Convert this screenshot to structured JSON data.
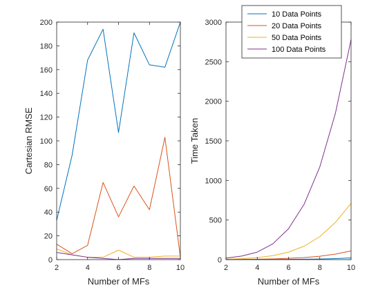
{
  "chart_data": [
    {
      "type": "line",
      "xlabel": "Number of MFs",
      "ylabel": "Cartesian RMSE",
      "xlim": [
        2,
        10
      ],
      "ylim": [
        0,
        200
      ],
      "xticks": [
        2,
        4,
        6,
        8,
        10
      ],
      "yticks": [
        0,
        20,
        40,
        60,
        80,
        100,
        120,
        140,
        160,
        180,
        200
      ],
      "x": [
        2,
        3,
        4,
        5,
        6,
        7,
        8,
        9,
        10
      ],
      "series": [
        {
          "color": "#0072BD",
          "values": [
            33,
            88,
            168,
            194,
            107,
            191,
            164,
            162,
            200
          ]
        },
        {
          "color": "#D95319",
          "values": [
            13,
            5,
            12,
            65,
            36,
            62,
            42,
            103,
            2
          ]
        },
        {
          "color": "#EDB120",
          "values": [
            9,
            4,
            2,
            2,
            8,
            2,
            2,
            3,
            3
          ]
        },
        {
          "color": "#7E2F8E",
          "values": [
            6,
            4,
            2,
            1,
            0,
            1,
            1,
            1,
            1
          ]
        }
      ]
    },
    {
      "type": "line",
      "xlabel": "Number of MFs",
      "ylabel": "Time Taken",
      "xlim": [
        2,
        10
      ],
      "ylim": [
        0,
        3000
      ],
      "xticks": [
        2,
        4,
        6,
        8,
        10
      ],
      "yticks": [
        0,
        500,
        1000,
        1500,
        2000,
        2500,
        3000
      ],
      "x": [
        2,
        3,
        4,
        5,
        6,
        7,
        8,
        9,
        10
      ],
      "legend_position": "top-right",
      "series": [
        {
          "name": "10 Data Points",
          "color": "#0072BD",
          "values": [
            0,
            1,
            1,
            2,
            3,
            5,
            8,
            13,
            22
          ]
        },
        {
          "name": "20 Data Points",
          "color": "#D95319",
          "values": [
            2,
            3,
            5,
            9,
            16,
            26,
            42,
            70,
            110
          ]
        },
        {
          "name": "50 Data Points",
          "color": "#EDB120",
          "values": [
            5,
            12,
            25,
            50,
            95,
            170,
            290,
            470,
            710
          ]
        },
        {
          "name": "100 Data Points",
          "color": "#7E2F8E",
          "values": [
            20,
            45,
            95,
            200,
            390,
            700,
            1170,
            1850,
            2780
          ]
        }
      ]
    }
  ]
}
